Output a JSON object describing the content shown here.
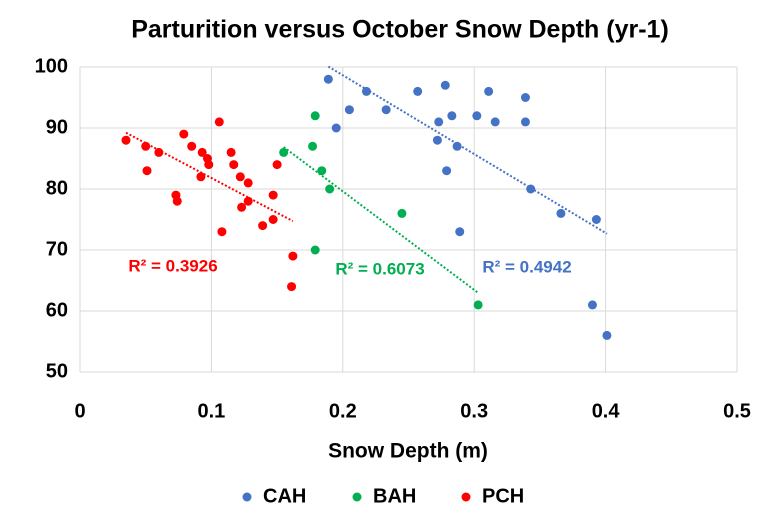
{
  "chart_data": {
    "type": "scatter",
    "title": "Parturition versus October Snow Depth (yr-1)",
    "x_label": "Snow Depth (m)",
    "xlim": [
      0,
      0.5
    ],
    "xticks": [
      0,
      0.1,
      0.2,
      0.3,
      0.4,
      0.5
    ],
    "ylim": [
      50,
      100
    ],
    "yticks": [
      50,
      60,
      70,
      80,
      90,
      100
    ],
    "grid": true,
    "legend": "bottom",
    "trendline": "linear",
    "series": [
      {
        "name": "CAH",
        "color": "#4472c4",
        "trendline_label": "R² = 0.4942",
        "x": [
          0.189,
          0.195,
          0.205,
          0.218,
          0.233,
          0.257,
          0.278,
          0.273,
          0.272,
          0.283,
          0.302,
          0.311,
          0.316,
          0.339,
          0.339,
          0.279,
          0.287,
          0.289,
          0.343,
          0.366,
          0.393,
          0.39,
          0.401
        ],
        "values": [
          98,
          90,
          93,
          96,
          93,
          96,
          97,
          91,
          88,
          92,
          92,
          96,
          91,
          95,
          91,
          83,
          87,
          73,
          80,
          76,
          75,
          61,
          56
        ]
      },
      {
        "name": "BAH",
        "color": "#00b050",
        "trendline_label": "R² = 0.6073",
        "x": [
          0.155,
          0.179,
          0.177,
          0.184,
          0.19,
          0.179,
          0.245,
          0.303
        ],
        "values": [
          86,
          92,
          87,
          83,
          80,
          70,
          76,
          61
        ]
      },
      {
        "name": "PCH",
        "color": "#ff0000",
        "trendline_label": "R² = 0.3926",
        "x": [
          0.035,
          0.05,
          0.051,
          0.06,
          0.073,
          0.074,
          0.079,
          0.085,
          0.093,
          0.092,
          0.097,
          0.098,
          0.106,
          0.108,
          0.115,
          0.117,
          0.122,
          0.123,
          0.128,
          0.128,
          0.139,
          0.147,
          0.147,
          0.15,
          0.162,
          0.161
        ],
        "values": [
          88,
          87,
          83,
          86,
          79,
          78,
          89,
          87,
          86,
          82,
          85,
          84,
          91,
          73,
          86,
          84,
          82,
          77,
          81,
          78,
          74,
          79,
          75,
          84,
          69,
          64
        ]
      }
    ]
  }
}
